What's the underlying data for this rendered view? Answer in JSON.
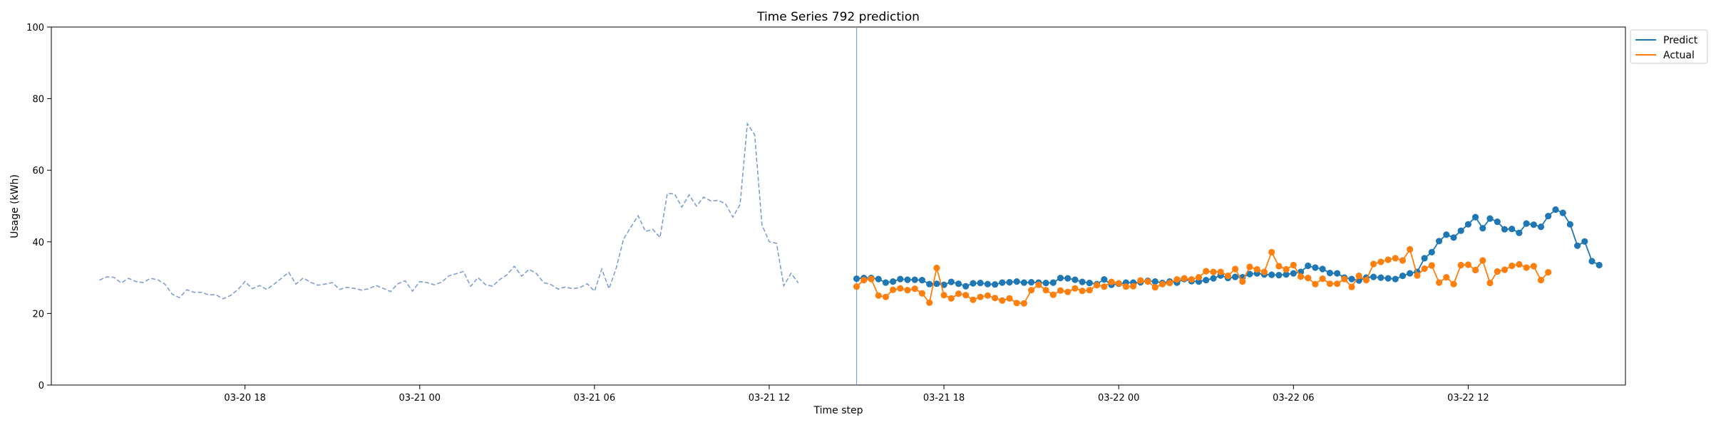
{
  "chart_data": {
    "type": "line",
    "title": "Time Series 792 prediction",
    "xlabel": "Time step",
    "ylabel": "Usage (kWh)",
    "ylim": [
      0,
      100
    ],
    "yticks": [
      0,
      20,
      40,
      60,
      80,
      100
    ],
    "x_unit": "15-minute steps",
    "xlim": [
      "2024-03-20 11:21",
      "2024-03-22 17:24"
    ],
    "xticks": [
      {
        "label": "03-20 18",
        "x": "2024-03-20 18:00"
      },
      {
        "label": "03-21 00",
        "x": "2024-03-21 00:00"
      },
      {
        "label": "03-21 06",
        "x": "2024-03-21 06:00"
      },
      {
        "label": "03-21 12",
        "x": "2024-03-21 12:00"
      },
      {
        "label": "03-21 18",
        "x": "2024-03-21 18:00"
      },
      {
        "label": "03-22 00",
        "x": "2024-03-22 00:00"
      },
      {
        "label": "03-22 06",
        "x": "2024-03-22 06:00"
      },
      {
        "label": "03-22 12",
        "x": "2024-03-22 12:00"
      }
    ],
    "forecast_start": "2024-03-21 15:00",
    "legend": {
      "placement": "outside top-right",
      "entries": [
        "Predict",
        "Actual"
      ]
    },
    "grid": false,
    "history": {
      "color": "#7f9fd1",
      "style": "dashed",
      "start": "2024-03-20 13:00",
      "values": [
        29.3,
        30.2,
        30.1,
        28.5,
        29.8,
        28.9,
        28.6,
        29.8,
        29.4,
        28.2,
        25.4,
        24.4,
        26.6,
        25.9,
        25.9,
        25.2,
        25.2,
        24.1,
        25.0,
        26.6,
        28.9,
        26.9,
        27.8,
        26.7,
        28.2,
        29.8,
        31.5,
        28.2,
        29.9,
        28.7,
        27.9,
        28.2,
        28.6,
        26.7,
        27.3,
        27.0,
        26.5,
        26.9,
        27.8,
        27.0,
        26.1,
        28.3,
        29.1,
        26.2,
        28.9,
        28.6,
        28.0,
        28.7,
        30.5,
        31.1,
        31.7,
        27.6,
        30.0,
        28.1,
        27.6,
        29.5,
        30.8,
        33.2,
        30.4,
        32.3,
        31.2,
        28.6,
        28.1,
        26.8,
        27.4,
        26.9,
        27.2,
        28.3,
        26.2,
        32.4,
        26.9,
        32.8,
        40.8,
        44.1,
        47.3,
        42.9,
        43.5,
        41.2,
        53.5,
        53.4,
        49.7,
        53.1,
        50.0,
        52.5,
        51.4,
        51.6,
        50.6,
        46.9,
        50.4,
        73.0,
        69.9,
        44.8,
        40.0,
        39.6,
        27.7,
        31.2,
        28.5
      ]
    },
    "series": [
      {
        "name": "Predict",
        "color": "#1f77b4",
        "values": [
          29.7,
          29.9,
          29.9,
          29.6,
          28.6,
          28.9,
          29.6,
          29.4,
          29.4,
          29.3,
          28.2,
          28.3,
          28.0,
          28.8,
          28.3,
          27.6,
          28.4,
          28.5,
          28.2,
          28.1,
          28.6,
          28.7,
          28.9,
          28.6,
          28.7,
          28.6,
          28.5,
          28.6,
          29.9,
          29.8,
          29.4,
          28.8,
          28.5,
          28.2,
          29.5,
          28.0,
          28.3,
          28.6,
          28.6,
          28.7,
          29.1,
          28.9,
          28.5,
          28.9,
          28.6,
          29.6,
          29.0,
          28.9,
          29.3,
          29.8,
          30.6,
          29.9,
          30.2,
          30.1,
          31.0,
          31.2,
          30.9,
          30.8,
          30.7,
          30.9,
          31.2,
          31.6,
          33.3,
          32.8,
          32.4,
          31.3,
          31.2,
          30.0,
          29.6,
          29.2,
          30.0,
          30.2,
          30.0,
          29.8,
          29.6,
          30.5,
          31.2,
          31.6,
          35.4,
          37.1,
          40.2,
          42.0,
          41.2,
          43.1,
          44.9,
          46.9,
          43.8,
          46.5,
          45.6,
          43.5,
          43.6,
          42.5,
          45.1,
          44.8,
          44.2,
          47.2,
          49.0,
          48.1,
          44.9,
          38.9,
          40.1,
          34.6,
          33.5
        ]
      },
      {
        "name": "Actual",
        "color": "#ff7f0e",
        "values": [
          27.5,
          29.3,
          29.6,
          25.0,
          24.6,
          26.6,
          27.0,
          26.5,
          26.9,
          25.6,
          23.0,
          32.7,
          25.1,
          24.2,
          25.5,
          25.1,
          23.8,
          24.6,
          25.0,
          24.3,
          23.6,
          24.2,
          22.9,
          22.8,
          26.5,
          28.0,
          26.5,
          25.2,
          26.4,
          26.0,
          27.0,
          26.3,
          26.5,
          27.9,
          27.5,
          28.8,
          28.4,
          27.5,
          27.6,
          29.2,
          28.9,
          27.3,
          28.2,
          28.5,
          29.5,
          29.8,
          29.5,
          30.1,
          31.8,
          31.6,
          31.6,
          30.5,
          32.4,
          28.9,
          33.0,
          32.3,
          31.6,
          37.1,
          33.2,
          32.3,
          33.5,
          30.3,
          29.9,
          28.2,
          29.7,
          28.3,
          28.3,
          29.6,
          27.4,
          30.5,
          29.3,
          33.8,
          34.4,
          35.0,
          35.4,
          34.8,
          37.9,
          30.6,
          32.5,
          33.4,
          28.6,
          30.1,
          28.2,
          33.5,
          33.6,
          32.1,
          34.8,
          28.5,
          31.7,
          32.2,
          33.3,
          33.7,
          32.8,
          33.2,
          29.3,
          31.5
        ]
      }
    ]
  }
}
